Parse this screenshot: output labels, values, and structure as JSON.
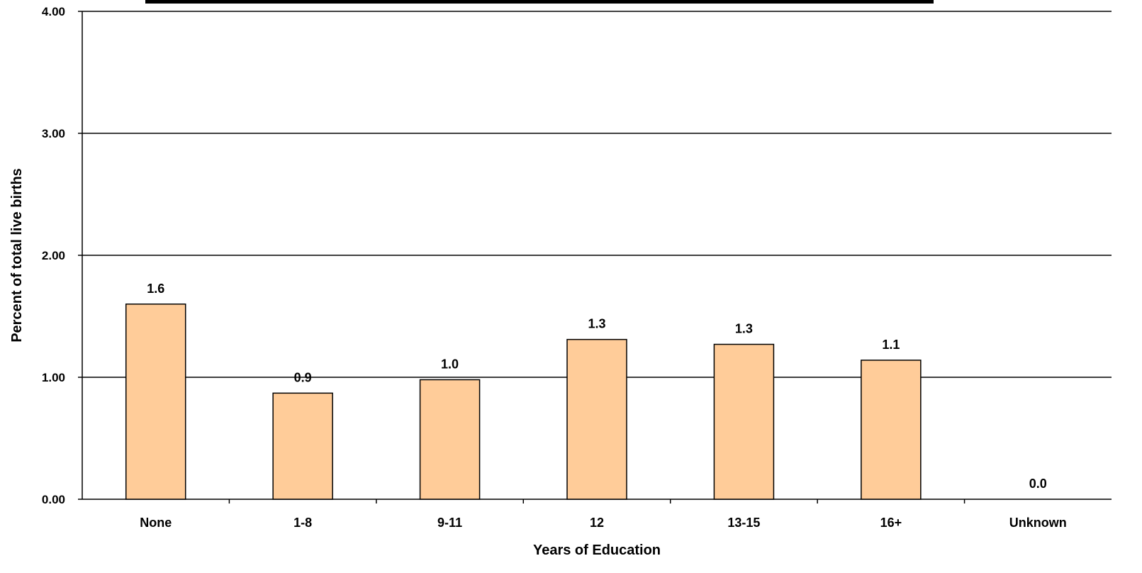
{
  "chart_data": {
    "type": "bar",
    "title": "",
    "xlabel": "Years of Education",
    "ylabel": "Percent of total live births",
    "categories": [
      "None",
      "1-8",
      "9-11",
      "12",
      "13-15",
      "16+",
      "Unknown"
    ],
    "values": [
      1.6,
      0.87,
      0.98,
      1.31,
      1.27,
      1.14,
      0.0
    ],
    "data_labels": [
      "1.6",
      "0.9",
      "1.0",
      "1.3",
      "1.3",
      "1.1",
      "0.0"
    ],
    "y_ticks": [
      "0.00",
      "1.00",
      "2.00",
      "3.00",
      "4.00"
    ],
    "y_tick_values": [
      0,
      1,
      2,
      3,
      4
    ],
    "ylim": [
      0,
      4
    ],
    "grid": true,
    "legend": "none",
    "colors": {
      "bar_fill": "#FFCC99",
      "bar_stroke": "#000000",
      "grid": "#000000"
    }
  }
}
